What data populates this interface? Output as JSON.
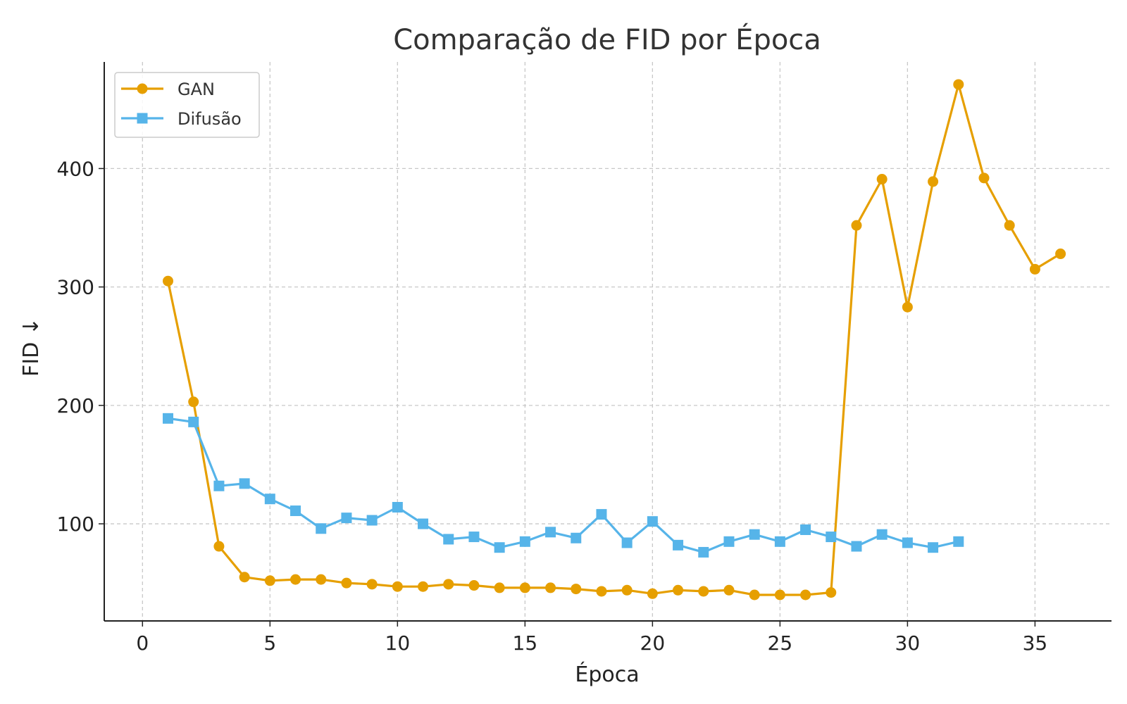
{
  "chart_data": {
    "type": "line",
    "title": "Comparação de FID por Época",
    "xlabel": "Época",
    "ylabel": "FID ↓",
    "xlim": [
      -1.5,
      38
    ],
    "ylim": [
      18,
      490
    ],
    "xticks": [
      0,
      5,
      10,
      15,
      20,
      25,
      30,
      35
    ],
    "yticks": [
      100,
      200,
      300,
      400
    ],
    "grid": true,
    "legend_position": "top-left",
    "series": [
      {
        "name": "GAN",
        "color": "#E69F00",
        "marker": "circle",
        "x": [
          1,
          2,
          3,
          4,
          5,
          6,
          7,
          8,
          9,
          10,
          11,
          12,
          13,
          14,
          15,
          16,
          17,
          18,
          19,
          20,
          21,
          22,
          23,
          24,
          25,
          26,
          27,
          28,
          29,
          30,
          31,
          32,
          33,
          34,
          35,
          36
        ],
        "values": [
          305,
          203,
          81,
          55,
          52,
          53,
          53,
          50,
          49,
          47,
          47,
          49,
          48,
          46,
          46,
          46,
          45,
          43,
          44,
          41,
          44,
          43,
          44,
          40,
          40,
          40,
          42,
          352,
          391,
          283,
          389,
          471,
          392,
          352,
          315,
          328
        ]
      },
      {
        "name": "Difusão",
        "color": "#56B4E9",
        "marker": "square",
        "x": [
          1,
          2,
          3,
          4,
          5,
          6,
          7,
          8,
          9,
          10,
          11,
          12,
          13,
          14,
          15,
          16,
          17,
          18,
          19,
          20,
          21,
          22,
          23,
          24,
          25,
          26,
          27,
          28,
          29,
          30,
          31,
          32
        ],
        "values": [
          189,
          186,
          132,
          134,
          121,
          111,
          96,
          105,
          103,
          114,
          100,
          87,
          89,
          80,
          85,
          93,
          88,
          108,
          84,
          102,
          82,
          76,
          85,
          91,
          85,
          95,
          89,
          81,
          91,
          84,
          80,
          85
        ]
      }
    ]
  }
}
